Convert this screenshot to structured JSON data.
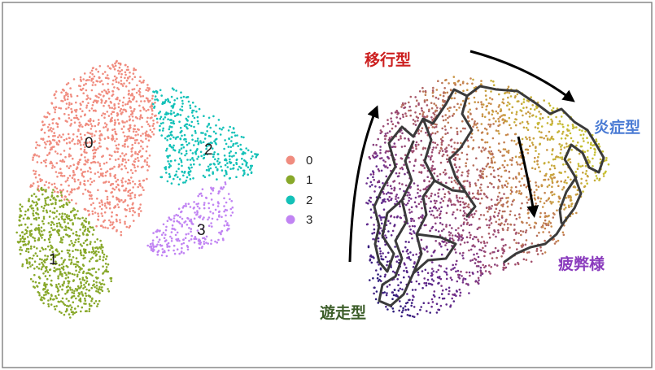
{
  "chart_data": [
    {
      "type": "scatter",
      "title": "",
      "xlabel": "",
      "ylabel": "",
      "grid": false,
      "legend_placement": "right",
      "series": [
        {
          "name": "0",
          "color": "#f08c7f",
          "label": "0"
        },
        {
          "name": "1",
          "color": "#88a82a",
          "label": "1"
        },
        {
          "name": "2",
          "color": "#14c1b8",
          "label": "2"
        },
        {
          "name": "3",
          "color": "#c184f3",
          "label": "3"
        }
      ]
    },
    {
      "type": "scatter",
      "title": "",
      "xlabel": "",
      "ylabel": "",
      "grid": false,
      "colorscale": [
        "#2a1a7a",
        "#6b2c8f",
        "#a04d6e",
        "#c98a4a",
        "#c6c030"
      ],
      "trajectory_color": "#3a3a3a",
      "annotations": [
        {
          "text": "移行型",
          "color": "#cc1f1f"
        },
        {
          "text": "炎症型",
          "color": "#4a7bd4"
        },
        {
          "text": "疲弊様",
          "color": "#8a3bbd"
        },
        {
          "text": "遊走型",
          "color": "#3d5e2a"
        }
      ],
      "arrows": [
        "up",
        "right",
        "down"
      ]
    }
  ]
}
